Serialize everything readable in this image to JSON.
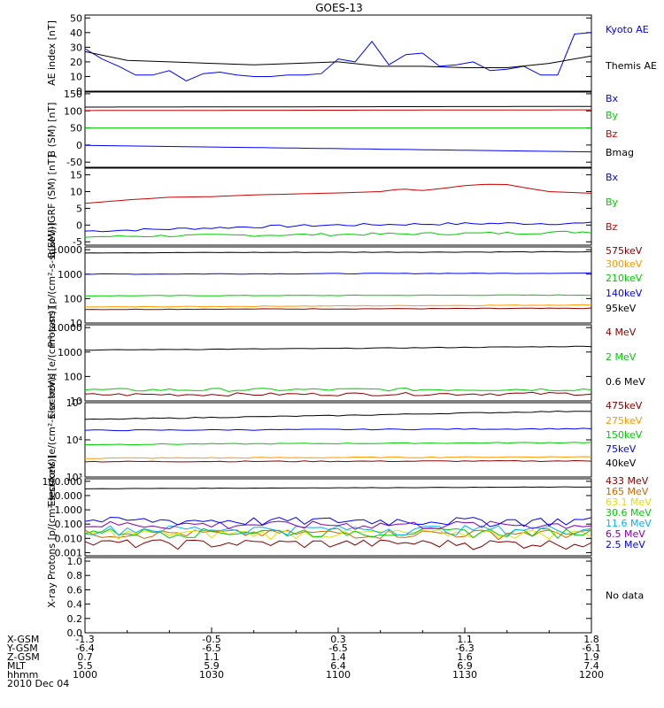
{
  "title": "GOES-13",
  "date_label": "2010 Dec 04",
  "colors": {
    "black": "#000000",
    "blue": "#0000ff",
    "green": "#00cc00",
    "red": "#cc0000",
    "orange": "#ff9900",
    "yellow": "#e0e000",
    "cyan": "#00b0ff",
    "purple": "#8800aa",
    "maroon": "#880000",
    "darkorange": "#cc6600"
  },
  "x_axis": {
    "rows": [
      {
        "label": "X-GSM",
        "values": [
          "-1.3",
          "-0.5",
          "0.3",
          "1.1",
          "1.8"
        ]
      },
      {
        "label": "Y-GSM",
        "values": [
          "-6.4",
          "-6.5",
          "-6.5",
          "-6.3",
          "-6.1"
        ]
      },
      {
        "label": "Z-GSM",
        "values": [
          "0.7",
          "1.1",
          "1.4",
          "1.6",
          "1.9"
        ]
      },
      {
        "label": "MLT",
        "values": [
          "5.5",
          "5.9",
          "6.4",
          "6.9",
          "7.4"
        ]
      },
      {
        "label": "hhmm",
        "values": [
          "1000",
          "1030",
          "1100",
          "1130",
          "1200"
        ]
      }
    ]
  },
  "chart_data": [
    {
      "type": "line",
      "ylabel": "AE index [nT]",
      "yticks": [
        "0",
        "10",
        "20",
        "30",
        "40",
        "50"
      ],
      "ylim": [
        0,
        52
      ],
      "series": [
        {
          "name": "Kyoto AE",
          "color": "#0000ff",
          "x": [
            0,
            4,
            8,
            12,
            16,
            20,
            24,
            28,
            32,
            36,
            40,
            44,
            48,
            52,
            56,
            60,
            64,
            68,
            72,
            76,
            80,
            84,
            88,
            92,
            96,
            100,
            104,
            108,
            112,
            116,
            120
          ],
          "values": [
            29,
            22,
            17,
            11,
            11,
            14,
            7,
            12,
            13,
            11,
            10,
            10,
            11,
            11,
            12,
            22,
            20,
            34,
            18,
            25,
            26,
            17,
            18,
            20,
            14,
            15,
            17,
            11,
            11,
            39,
            40
          ]
        },
        {
          "name": "Themis AE",
          "color": "#000000",
          "x": [
            0,
            10,
            20,
            30,
            40,
            50,
            60,
            70,
            80,
            90,
            100,
            110,
            120
          ],
          "values": [
            27,
            21,
            20,
            19,
            18,
            19,
            20,
            17,
            17,
            16,
            16,
            19,
            24
          ]
        }
      ],
      "legend": [
        "Kyoto AE",
        "Themis AE"
      ]
    },
    {
      "type": "line",
      "ylabel": "B (SM) [nT]",
      "yticks": [
        "-50",
        "0",
        "50",
        "100",
        "150"
      ],
      "ylim": [
        -65,
        155
      ],
      "series": [
        {
          "name": "Bx",
          "color": "#0000ff",
          "x": [
            0,
            120
          ],
          "values": [
            -1,
            -20
          ]
        },
        {
          "name": "By",
          "color": "#00cc00",
          "x": [
            0,
            120
          ],
          "values": [
            50,
            50
          ]
        },
        {
          "name": "Bz",
          "color": "#cc0000",
          "x": [
            0,
            120
          ],
          "values": [
            101,
            103
          ]
        },
        {
          "name": "Bmag",
          "color": "#000000",
          "x": [
            0,
            120
          ],
          "values": [
            111,
            113
          ]
        }
      ],
      "legend": [
        "Bx",
        "By",
        "Bz",
        "Bmag"
      ]
    },
    {
      "type": "line",
      "ylabel": "B(SM)-IGRF (SM) [nT]",
      "yticks": [
        "-5",
        "0",
        "5",
        "10",
        "15"
      ],
      "ylim": [
        -6,
        17
      ],
      "series": [
        {
          "name": "Bx",
          "color": "#0000ff",
          "x": [
            0,
            20,
            40,
            60,
            80,
            100,
            120
          ],
          "values": [
            -1.8,
            -1.2,
            -0.5,
            0,
            0.3,
            0.5,
            0.5
          ]
        },
        {
          "name": "By",
          "color": "#00cc00",
          "x": [
            0,
            20,
            40,
            60,
            80,
            100,
            120
          ],
          "values": [
            -3.5,
            -3.2,
            -3,
            -2.8,
            -2.6,
            -2.4,
            -2
          ]
        },
        {
          "name": "Bz",
          "color": "#cc0000",
          "x": [
            0,
            10,
            20,
            30,
            40,
            50,
            60,
            70,
            75,
            80,
            85,
            90,
            95,
            100,
            105,
            110,
            120
          ],
          "values": [
            6.5,
            7.5,
            8.3,
            8.5,
            9,
            9.3,
            9.6,
            10,
            10.8,
            10.3,
            11,
            11.8,
            12.2,
            12.1,
            11,
            10,
            9.5
          ]
        }
      ],
      "legend": [
        "Bx",
        "By",
        "Bz"
      ]
    },
    {
      "type": "line",
      "scale": "log",
      "ylabel": "Protons [p/(cm²-s-sr-keV)]",
      "yticks": [
        "10",
        "100",
        "1000",
        "10000"
      ],
      "ylim": [
        10,
        13000
      ],
      "series": [
        {
          "name": "575keV",
          "color": "#880000",
          "x": [
            0,
            120
          ],
          "values": [
            36,
            40
          ]
        },
        {
          "name": "300keV",
          "color": "#ff9900",
          "x": [
            0,
            120
          ],
          "values": [
            45,
            55
          ]
        },
        {
          "name": "210keV",
          "color": "#00cc00",
          "x": [
            0,
            120
          ],
          "values": [
            130,
            140
          ]
        },
        {
          "name": "140keV",
          "color": "#0000ff",
          "x": [
            0,
            120
          ],
          "values": [
            1000,
            1100
          ]
        },
        {
          "name": "95keV",
          "color": "#000000",
          "x": [
            0,
            120
          ],
          "values": [
            7500,
            8200
          ]
        }
      ],
      "legend": [
        "575keV",
        "300keV",
        "210keV",
        "140keV",
        "95keV"
      ]
    },
    {
      "type": "line",
      "scale": "log",
      "ylabel": "Electrons [e/(cm²-s-sr)]",
      "yticks": [
        "10",
        "100",
        "1000",
        "10000"
      ],
      "ylim": [
        10,
        13000
      ],
      "series": [
        {
          "name": "4 MeV",
          "color": "#880000",
          "x": [
            0,
            120
          ],
          "values": [
            18,
            20
          ]
        },
        {
          "name": "2 MeV",
          "color": "#00cc00",
          "x": [
            0,
            120
          ],
          "values": [
            28,
            30
          ]
        },
        {
          "name": "0.6 MeV",
          "color": "#000000",
          "x": [
            0,
            60,
            120
          ],
          "values": [
            1200,
            1400,
            1700
          ]
        }
      ],
      "legend": [
        "4 MeV",
        "2 MeV",
        "0.6 MeV"
      ]
    },
    {
      "type": "line",
      "scale": "log",
      "ylabel": "Electrons [e/(cm²-s-sr-keV)]",
      "yticks": [
        "10³",
        "10⁴",
        "10⁵"
      ],
      "ylim": [
        1000,
        100000
      ],
      "series": [
        {
          "name": "475keV",
          "color": "#880000",
          "x": [
            0,
            120
          ],
          "values": [
            2600,
            2700
          ]
        },
        {
          "name": "275keV",
          "color": "#ff9900",
          "x": [
            0,
            120
          ],
          "values": [
            3200,
            3500
          ]
        },
        {
          "name": "150keV",
          "color": "#00cc00",
          "x": [
            0,
            120
          ],
          "values": [
            7500,
            8500
          ]
        },
        {
          "name": "75keV",
          "color": "#0000ff",
          "x": [
            0,
            120
          ],
          "values": [
            18000,
            20000
          ]
        },
        {
          "name": "40keV",
          "color": "#000000",
          "x": [
            0,
            60,
            120
          ],
          "values": [
            35000,
            45000,
            60000
          ]
        }
      ],
      "legend": [
        "475keV",
        "275keV",
        "150keV",
        "75keV",
        "40keV"
      ]
    },
    {
      "type": "line",
      "scale": "log",
      "ylabel": "Protons [p/(cm²-s-sr-keV)]",
      "yticks": [
        "0.001",
        "0.010",
        "0.100",
        "1.000",
        "10.000",
        "100.000"
      ],
      "ylim": [
        0.0006,
        150
      ],
      "series": [
        {
          "name": "433 MeV",
          "color": "#880000",
          "x": [
            0,
            120
          ],
          "values": [
            0.004,
            0.004
          ]
        },
        {
          "name": "165 MeV",
          "color": "#cc6600",
          "x": [
            0,
            120
          ],
          "values": [
            0.02,
            0.02
          ]
        },
        {
          "name": "63.1 MeV",
          "color": "#e0e000",
          "x": [
            0,
            120
          ],
          "values": [
            0.02,
            0.02
          ]
        },
        {
          "name": "30.6 MeV",
          "color": "#00cc00",
          "x": [
            0,
            120
          ],
          "values": [
            0.025,
            0.025
          ]
        },
        {
          "name": "11.6 MeV",
          "color": "#00b0ff",
          "x": [
            0,
            120
          ],
          "values": [
            0.04,
            0.04
          ]
        },
        {
          "name": "6.5 MeV",
          "color": "#8800aa",
          "x": [
            0,
            120
          ],
          "values": [
            0.08,
            0.08
          ]
        },
        {
          "name": "2.5 MeV",
          "color": "#0000ff",
          "x": [
            0,
            120
          ],
          "values": [
            0.15,
            0.15
          ]
        },
        {
          "name": "",
          "color": "#000000",
          "x": [
            0,
            120
          ],
          "values": [
            30,
            40
          ]
        }
      ],
      "legend": [
        "433 MeV",
        "165 MeV",
        "63.1 MeV",
        "30.6 MeV",
        "11.6 MeV",
        "6.5 MeV",
        "2.5 MeV"
      ]
    },
    {
      "type": "line",
      "ylabel": "X-ray",
      "yticks": [
        "0.0",
        "0.2",
        "0.4",
        "0.6",
        "0.8",
        "1.0"
      ],
      "ylim": [
        0,
        1.05
      ],
      "series": [],
      "legend": [],
      "note": "No data"
    }
  ]
}
